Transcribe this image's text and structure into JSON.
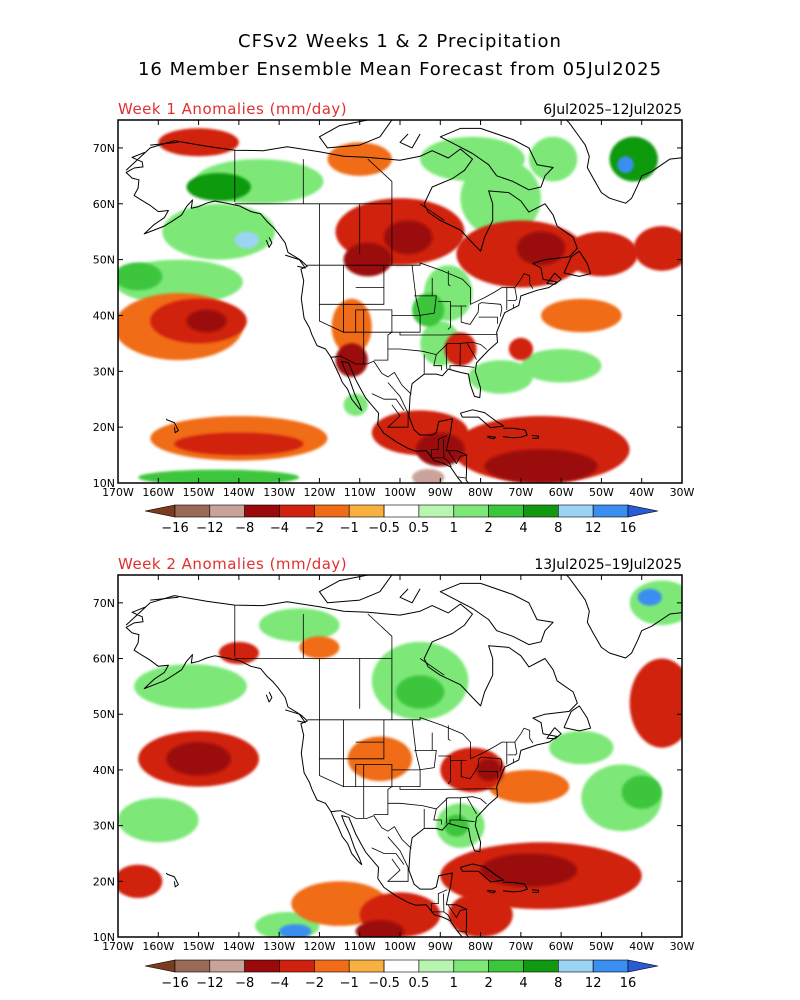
{
  "header": {
    "title_line1": "CFSv2 Weeks 1 & 2 Precipitation",
    "title_line2": "16 Member Ensemble Mean Forecast from 05Jul2025"
  },
  "colors": {
    "title_red": "#e03030",
    "scale": [
      "#7a3b1e",
      "#9a6a58",
      "#c9a39a",
      "#9b0a0a",
      "#d02010",
      "#f06c18",
      "#f8b040",
      "#ffffff",
      "#b8f5b0",
      "#7de878",
      "#3cc63c",
      "#119a11",
      "#9cd4f4",
      "#3a8ef0",
      "#2a5ad6"
    ]
  },
  "colorbar": {
    "labels": [
      "−16",
      "−12",
      "−8",
      "−4",
      "−2",
      "−1",
      "−0.5",
      "0.5",
      "1",
      "2",
      "4",
      "8",
      "12",
      "16"
    ]
  },
  "panels": [
    {
      "title": "Week 1 Anomalies (mm/day)",
      "dates": "6Jul2025–12Jul2025",
      "lon_labels": [
        "170W",
        "160W",
        "150W",
        "140W",
        "130W",
        "120W",
        "110W",
        "100W",
        "90W",
        "80W",
        "70W",
        "60W",
        "50W",
        "40W",
        "30W"
      ],
      "lat_labels": [
        "70N",
        "60N",
        "50N",
        "40N",
        "30N",
        "20N",
        "10N"
      ],
      "blobs": [
        {
          "lon": -82,
          "lat": 68,
          "rx": 13,
          "ry": 4,
          "v": 1
        },
        {
          "lon": -75,
          "lat": 61,
          "rx": 10,
          "ry": 7,
          "v": 1
        },
        {
          "lon": -62,
          "lat": 68,
          "rx": 6,
          "ry": 4,
          "v": 1
        },
        {
          "lon": -42,
          "lat": 68,
          "rx": 6,
          "ry": 4,
          "v": 4
        },
        {
          "lon": -44,
          "lat": 67,
          "rx": 2,
          "ry": 1.5,
          "v": 12
        },
        {
          "lon": -135,
          "lat": 64,
          "rx": 16,
          "ry": 4,
          "v": 1
        },
        {
          "lon": -145,
          "lat": 63,
          "rx": 8,
          "ry": 2.5,
          "v": 4
        },
        {
          "lon": -145,
          "lat": 55,
          "rx": 14,
          "ry": 5,
          "v": 1
        },
        {
          "lon": -138,
          "lat": 53.5,
          "rx": 3,
          "ry": 1.5,
          "v": 8
        },
        {
          "lon": -155,
          "lat": 46,
          "rx": 16,
          "ry": 4,
          "v": 1
        },
        {
          "lon": -165,
          "lat": 47,
          "rx": 6,
          "ry": 2.5,
          "v": 2
        },
        {
          "lon": -88,
          "lat": 44,
          "rx": 6,
          "ry": 5,
          "v": 1
        },
        {
          "lon": -93,
          "lat": 41,
          "rx": 4,
          "ry": 3,
          "v": 2
        },
        {
          "lon": -90,
          "lat": 35,
          "rx": 5,
          "ry": 4,
          "v": 1
        },
        {
          "lon": -75,
          "lat": 29,
          "rx": 8,
          "ry": 3,
          "v": 1
        },
        {
          "lon": -60,
          "lat": 31,
          "rx": 10,
          "ry": 3,
          "v": 1
        },
        {
          "lon": -145,
          "lat": 11,
          "rx": 20,
          "ry": 1.4,
          "v": 2
        },
        {
          "lon": -111,
          "lat": 24,
          "rx": 3,
          "ry": 2,
          "v": 1
        },
        {
          "lon": -150,
          "lat": 71,
          "rx": 10,
          "ry": 2.5,
          "v": -2
        },
        {
          "lon": -110,
          "lat": 68,
          "rx": 8,
          "ry": 3,
          "v": -1
        },
        {
          "lon": -100,
          "lat": 55,
          "rx": 16,
          "ry": 6,
          "v": -2
        },
        {
          "lon": -98,
          "lat": 54,
          "rx": 6,
          "ry": 3,
          "v": -4
        },
        {
          "lon": -108,
          "lat": 50,
          "rx": 6,
          "ry": 3,
          "v": -4
        },
        {
          "lon": -70,
          "lat": 51,
          "rx": 16,
          "ry": 6,
          "v": -2
        },
        {
          "lon": -65,
          "lat": 52,
          "rx": 6,
          "ry": 3,
          "v": -4
        },
        {
          "lon": -50,
          "lat": 51,
          "rx": 9,
          "ry": 4,
          "v": -2
        },
        {
          "lon": -35,
          "lat": 52,
          "rx": 7,
          "ry": 4,
          "v": -2
        },
        {
          "lon": -155,
          "lat": 38,
          "rx": 16,
          "ry": 6,
          "v": -1
        },
        {
          "lon": -150,
          "lat": 39,
          "rx": 12,
          "ry": 4,
          "v": -2
        },
        {
          "lon": -148,
          "lat": 39,
          "rx": 5,
          "ry": 2,
          "v": -4
        },
        {
          "lon": -112,
          "lat": 38,
          "rx": 5,
          "ry": 5,
          "v": -1
        },
        {
          "lon": -112,
          "lat": 32,
          "rx": 4,
          "ry": 3,
          "v": -4
        },
        {
          "lon": -85,
          "lat": 34,
          "rx": 4,
          "ry": 3,
          "v": -2
        },
        {
          "lon": -70,
          "lat": 34,
          "rx": 3,
          "ry": 2,
          "v": -2
        },
        {
          "lon": -55,
          "lat": 40,
          "rx": 10,
          "ry": 3,
          "v": -1
        },
        {
          "lon": -140,
          "lat": 18,
          "rx": 22,
          "ry": 4,
          "v": -1
        },
        {
          "lon": -140,
          "lat": 17,
          "rx": 16,
          "ry": 2,
          "v": -2
        },
        {
          "lon": -95,
          "lat": 19,
          "rx": 12,
          "ry": 4,
          "v": -2
        },
        {
          "lon": -90,
          "lat": 16,
          "rx": 6,
          "ry": 3,
          "v": -4
        },
        {
          "lon": -65,
          "lat": 16,
          "rx": 22,
          "ry": 6,
          "v": -2
        },
        {
          "lon": -65,
          "lat": 13,
          "rx": 14,
          "ry": 3,
          "v": -4
        },
        {
          "lon": -93,
          "lat": 11,
          "rx": 4,
          "ry": 1.5,
          "v": -8
        }
      ]
    },
    {
      "title": "Week 2 Anomalies (mm/day)",
      "dates": "13Jul2025–19Jul2025",
      "lon_labels": [
        "170W",
        "160W",
        "150W",
        "140W",
        "130W",
        "120W",
        "110W",
        "100W",
        "90W",
        "80W",
        "70W",
        "60W",
        "50W",
        "40W",
        "30W"
      ],
      "lat_labels": [
        "70N",
        "60N",
        "50N",
        "40N",
        "30N",
        "20N",
        "10N"
      ],
      "blobs": [
        {
          "lon": -95,
          "lat": 56,
          "rx": 12,
          "ry": 7,
          "v": 1
        },
        {
          "lon": -95,
          "lat": 54,
          "rx": 6,
          "ry": 3,
          "v": 2
        },
        {
          "lon": -125,
          "lat": 66,
          "rx": 10,
          "ry": 3,
          "v": 1
        },
        {
          "lon": -35,
          "lat": 70,
          "rx": 8,
          "ry": 4,
          "v": 1
        },
        {
          "lon": -38,
          "lat": 71,
          "rx": 3,
          "ry": 1.5,
          "v": 12
        },
        {
          "lon": -152,
          "lat": 55,
          "rx": 14,
          "ry": 4,
          "v": 1
        },
        {
          "lon": -160,
          "lat": 31,
          "rx": 10,
          "ry": 4,
          "v": 1
        },
        {
          "lon": -85,
          "lat": 30,
          "rx": 6,
          "ry": 4,
          "v": 1
        },
        {
          "lon": -86,
          "lat": 30,
          "rx": 3,
          "ry": 2,
          "v": 2
        },
        {
          "lon": -45,
          "lat": 35,
          "rx": 10,
          "ry": 6,
          "v": 1
        },
        {
          "lon": -40,
          "lat": 36,
          "rx": 5,
          "ry": 3,
          "v": 2
        },
        {
          "lon": -55,
          "lat": 44,
          "rx": 8,
          "ry": 3,
          "v": 1
        },
        {
          "lon": -128,
          "lat": 12,
          "rx": 8,
          "ry": 2.5,
          "v": 1
        },
        {
          "lon": -126,
          "lat": 11,
          "rx": 4,
          "ry": 1.3,
          "v": 12
        },
        {
          "lon": -140,
          "lat": 61,
          "rx": 5,
          "ry": 2,
          "v": -2
        },
        {
          "lon": -120,
          "lat": 62,
          "rx": 5,
          "ry": 2,
          "v": -1
        },
        {
          "lon": -150,
          "lat": 42,
          "rx": 15,
          "ry": 5,
          "v": -2
        },
        {
          "lon": -150,
          "lat": 42,
          "rx": 8,
          "ry": 3,
          "v": -4
        },
        {
          "lon": -105,
          "lat": 42,
          "rx": 8,
          "ry": 4,
          "v": -1
        },
        {
          "lon": -82,
          "lat": 40,
          "rx": 8,
          "ry": 4,
          "v": -2
        },
        {
          "lon": -78,
          "lat": 40,
          "rx": 3,
          "ry": 2,
          "v": -4
        },
        {
          "lon": -35,
          "lat": 52,
          "rx": 8,
          "ry": 8,
          "v": -2
        },
        {
          "lon": -68,
          "lat": 37,
          "rx": 10,
          "ry": 3,
          "v": -1
        },
        {
          "lon": -165,
          "lat": 20,
          "rx": 6,
          "ry": 3,
          "v": -2
        },
        {
          "lon": -115,
          "lat": 16,
          "rx": 12,
          "ry": 4,
          "v": -1
        },
        {
          "lon": -100,
          "lat": 14,
          "rx": 10,
          "ry": 4,
          "v": -2
        },
        {
          "lon": -105,
          "lat": 11,
          "rx": 6,
          "ry": 2,
          "v": -4
        },
        {
          "lon": -65,
          "lat": 21,
          "rx": 25,
          "ry": 6,
          "v": -2
        },
        {
          "lon": -68,
          "lat": 22,
          "rx": 12,
          "ry": 3,
          "v": -4
        },
        {
          "lon": -80,
          "lat": 14,
          "rx": 8,
          "ry": 4,
          "v": -2
        }
      ]
    }
  ]
}
